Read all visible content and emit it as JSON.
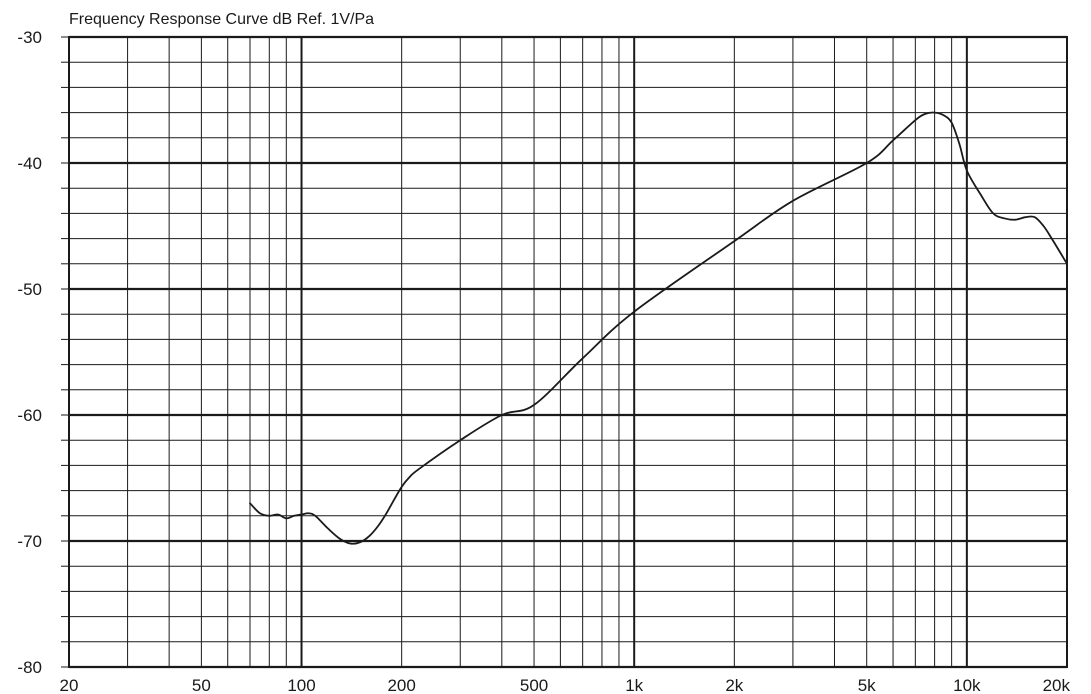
{
  "chart_data": {
    "type": "line",
    "title": "Frequency Response Curve dB Ref. 1V/Pa",
    "xlabel": "",
    "ylabel": "",
    "x_scale": "log",
    "xlim": [
      20,
      20000
    ],
    "ylim": [
      -80,
      -30
    ],
    "grid": true,
    "x_ticks": [
      {
        "value": 20,
        "label": "20"
      },
      {
        "value": 50,
        "label": "50"
      },
      {
        "value": 100,
        "label": "100"
      },
      {
        "value": 200,
        "label": "200"
      },
      {
        "value": 500,
        "label": "500"
      },
      {
        "value": 1000,
        "label": "1k"
      },
      {
        "value": 2000,
        "label": "2k"
      },
      {
        "value": 5000,
        "label": "5k"
      },
      {
        "value": 10000,
        "label": "10k"
      },
      {
        "value": 20000,
        "label": "20k"
      }
    ],
    "y_ticks": [
      {
        "value": -30,
        "label": "-30"
      },
      {
        "value": -40,
        "label": "-40"
      },
      {
        "value": -50,
        "label": "-50"
      },
      {
        "value": -60,
        "label": "-60"
      },
      {
        "value": -70,
        "label": "-70"
      },
      {
        "value": -80,
        "label": "-80"
      }
    ],
    "series": [
      {
        "color": "#1a1a1a",
        "x": [
          70,
          75,
          80,
          85,
          90,
          95,
          100,
          105,
          110,
          120,
          130,
          140,
          150,
          160,
          170,
          180,
          190,
          200,
          210,
          225,
          300,
          400,
          500,
          700,
          1000,
          2000,
          3000,
          5000,
          6000,
          7000,
          7500,
          8000,
          8500,
          9000,
          9500,
          10000,
          11000,
          12000,
          13000,
          14000,
          15000,
          16000,
          17000,
          18000,
          20000
        ],
        "y": [
          -67.0,
          -67.8,
          -68.0,
          -67.9,
          -68.2,
          -68.0,
          -67.9,
          -67.8,
          -68.0,
          -69.0,
          -69.8,
          -70.2,
          -70.1,
          -69.6,
          -68.8,
          -67.8,
          -66.7,
          -65.7,
          -65.0,
          -64.3,
          -62.0,
          -60.0,
          -59.2,
          -55.5,
          -51.8,
          -46.2,
          -43.0,
          -40.0,
          -38.2,
          -36.6,
          -36.1,
          -36.0,
          -36.2,
          -36.8,
          -38.5,
          -40.6,
          -42.5,
          -44.0,
          -44.4,
          -44.5,
          -44.3,
          -44.3,
          -45.0,
          -46.0,
          -48.0
        ]
      }
    ]
  }
}
